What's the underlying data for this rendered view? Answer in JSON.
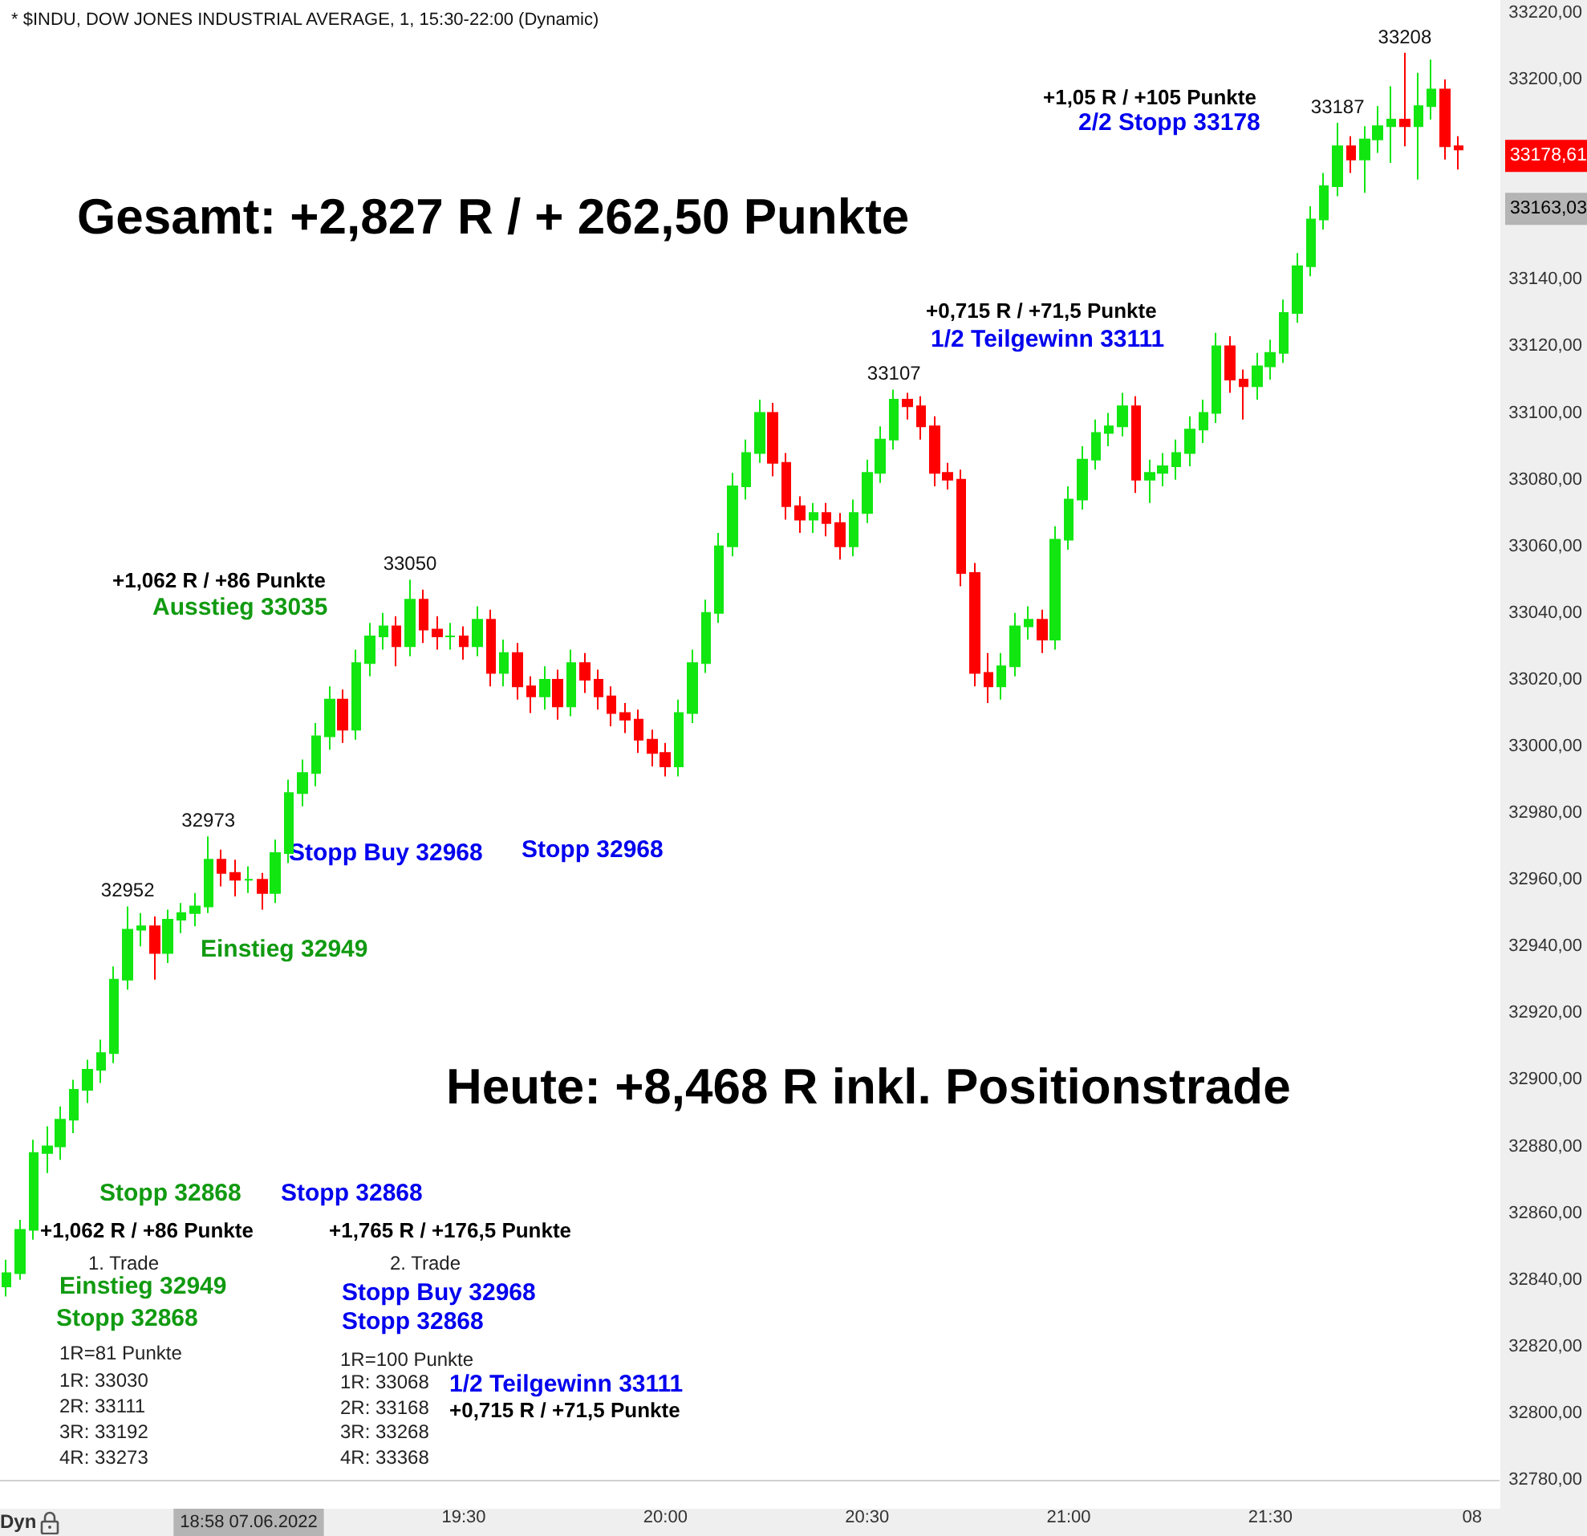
{
  "chart_data": {
    "type": "candlestick",
    "title": "* $INDU, DOW JONES INDUSTRIAL AVERAGE, 1, 15:30-22:00 (Dynamic)",
    "x": [
      "2022-06-07T18:22",
      "2022-06-07T18:24",
      "2022-06-07T18:26",
      "2022-06-07T18:28",
      "2022-06-07T18:30",
      "2022-06-07T18:32",
      "2022-06-07T18:34",
      "2022-06-07T18:36",
      "2022-06-07T18:38",
      "2022-06-07T18:40",
      "2022-06-07T18:42",
      "2022-06-07T18:44",
      "2022-06-07T18:46",
      "2022-06-07T18:48",
      "2022-06-07T18:50",
      "2022-06-07T18:52",
      "2022-06-07T18:54",
      "2022-06-07T18:56",
      "2022-06-07T18:58",
      "2022-06-07T19:00",
      "2022-06-07T19:02",
      "2022-06-07T19:04",
      "2022-06-07T19:06",
      "2022-06-07T19:08",
      "2022-06-07T19:10",
      "2022-06-07T19:12",
      "2022-06-07T19:14",
      "2022-06-07T19:16",
      "2022-06-07T19:18",
      "2022-06-07T19:20",
      "2022-06-07T19:22",
      "2022-06-07T19:24",
      "2022-06-07T19:26",
      "2022-06-07T19:28",
      "2022-06-07T19:30",
      "2022-06-07T19:32",
      "2022-06-07T19:34",
      "2022-06-07T19:36",
      "2022-06-07T19:38",
      "2022-06-07T19:40",
      "2022-06-07T19:42",
      "2022-06-07T19:44",
      "2022-06-07T19:46",
      "2022-06-07T19:48",
      "2022-06-07T19:50",
      "2022-06-07T19:52",
      "2022-06-07T19:54",
      "2022-06-07T19:56",
      "2022-06-07T19:58",
      "2022-06-07T20:00",
      "2022-06-07T20:02",
      "2022-06-07T20:04",
      "2022-06-07T20:06",
      "2022-06-07T20:08",
      "2022-06-07T20:10",
      "2022-06-07T20:12",
      "2022-06-07T20:14",
      "2022-06-07T20:16",
      "2022-06-07T20:18",
      "2022-06-07T20:20",
      "2022-06-07T20:22",
      "2022-06-07T20:24",
      "2022-06-07T20:26",
      "2022-06-07T20:28",
      "2022-06-07T20:30",
      "2022-06-07T20:32",
      "2022-06-07T20:34",
      "2022-06-07T20:36",
      "2022-06-07T20:38",
      "2022-06-07T20:40",
      "2022-06-07T20:42",
      "2022-06-07T20:44",
      "2022-06-07T20:46",
      "2022-06-07T20:48",
      "2022-06-07T20:50",
      "2022-06-07T20:52",
      "2022-06-07T20:54",
      "2022-06-07T20:56",
      "2022-06-07T20:58",
      "2022-06-07T21:00",
      "2022-06-07T21:02",
      "2022-06-07T21:04",
      "2022-06-07T21:06",
      "2022-06-07T21:08",
      "2022-06-07T21:10",
      "2022-06-07T21:12",
      "2022-06-07T21:14",
      "2022-06-07T21:16",
      "2022-06-07T21:18",
      "2022-06-07T21:20",
      "2022-06-07T21:22",
      "2022-06-07T21:24",
      "2022-06-07T21:26",
      "2022-06-07T21:28",
      "2022-06-07T21:30",
      "2022-06-07T21:32",
      "2022-06-07T21:34",
      "2022-06-07T21:36",
      "2022-06-07T21:38",
      "2022-06-07T21:40",
      "2022-06-07T21:42",
      "2022-06-07T21:44",
      "2022-06-07T21:46",
      "2022-06-07T21:48",
      "2022-06-07T21:50",
      "2022-06-07T21:52",
      "2022-06-07T21:54",
      "2022-06-07T21:56",
      "2022-06-07T21:58"
    ],
    "ohlc": [
      [
        32838,
        32846,
        32835,
        32842
      ],
      [
        32842,
        32858,
        32840,
        32855
      ],
      [
        32855,
        32882,
        32852,
        32878
      ],
      [
        32878,
        32886,
        32872,
        32880
      ],
      [
        32880,
        32892,
        32876,
        32888
      ],
      [
        32888,
        32900,
        32884,
        32897
      ],
      [
        32897,
        32906,
        32893,
        32903
      ],
      [
        32903,
        32912,
        32899,
        32908
      ],
      [
        32908,
        32934,
        32905,
        32930
      ],
      [
        32930,
        32952,
        32927,
        32945
      ],
      [
        32945,
        32950,
        32940,
        32946
      ],
      [
        32946,
        32949,
        32930,
        32938
      ],
      [
        32938,
        32951,
        32935,
        32948
      ],
      [
        32948,
        32953,
        32944,
        32950
      ],
      [
        32950,
        32956,
        32946,
        32952
      ],
      [
        32952,
        32973,
        32950,
        32966
      ],
      [
        32966,
        32969,
        32958,
        32962
      ],
      [
        32962,
        32966,
        32955,
        32960
      ],
      [
        32960,
        32964,
        32956,
        32960
      ],
      [
        32960,
        32962,
        32951,
        32956
      ],
      [
        32956,
        32972,
        32953,
        32968
      ],
      [
        32968,
        32990,
        32965,
        32986
      ],
      [
        32986,
        32996,
        32982,
        32992
      ],
      [
        32992,
        33007,
        32988,
        33003
      ],
      [
        33003,
        33018,
        32999,
        33014
      ],
      [
        33014,
        33017,
        33001,
        33005
      ],
      [
        33005,
        33029,
        33002,
        33025
      ],
      [
        33025,
        33037,
        33021,
        33033
      ],
      [
        33033,
        33040,
        33029,
        33036
      ],
      [
        33036,
        33039,
        33024,
        33030
      ],
      [
        33030,
        33050,
        33027,
        33044
      ],
      [
        33044,
        33047,
        33031,
        33035
      ],
      [
        33035,
        33039,
        33029,
        33033
      ],
      [
        33033,
        33037,
        33029,
        33033
      ],
      [
        33033,
        33036,
        33026,
        33030
      ],
      [
        33030,
        33042,
        33027,
        33038
      ],
      [
        33038,
        33041,
        33018,
        33022
      ],
      [
        33022,
        33032,
        33018,
        33028
      ],
      [
        33028,
        33031,
        33014,
        33018
      ],
      [
        33018,
        33021,
        33010,
        33015
      ],
      [
        33015,
        33024,
        33011,
        33020
      ],
      [
        33020,
        33023,
        33008,
        33012
      ],
      [
        33012,
        33029,
        33009,
        33025
      ],
      [
        33025,
        33028,
        33016,
        33020
      ],
      [
        33020,
        33023,
        33011,
        33015
      ],
      [
        33015,
        33018,
        33006,
        33010
      ],
      [
        33010,
        33013,
        33004,
        33008
      ],
      [
        33008,
        33011,
        32998,
        33002
      ],
      [
        33002,
        33005,
        32994,
        32998
      ],
      [
        32998,
        33001,
        32991,
        32994
      ],
      [
        32994,
        33014,
        32991,
        33010
      ],
      [
        33010,
        33029,
        33007,
        33025
      ],
      [
        33025,
        33044,
        33022,
        33040
      ],
      [
        33040,
        33064,
        33037,
        33060
      ],
      [
        33060,
        33082,
        33057,
        33078
      ],
      [
        33078,
        33092,
        33074,
        33088
      ],
      [
        33088,
        33104,
        33085,
        33100
      ],
      [
        33100,
        33103,
        33081,
        33085
      ],
      [
        33085,
        33088,
        33068,
        33072
      ],
      [
        33072,
        33075,
        33064,
        33068
      ],
      [
        33068,
        33073,
        33064,
        33070
      ],
      [
        33070,
        33073,
        33063,
        33067
      ],
      [
        33067,
        33070,
        33056,
        33060
      ],
      [
        33060,
        33074,
        33057,
        33070
      ],
      [
        33070,
        33086,
        33067,
        33082
      ],
      [
        33082,
        33096,
        33079,
        33092
      ],
      [
        33092,
        33107,
        33089,
        33104
      ],
      [
        33104,
        33106,
        33098,
        33102
      ],
      [
        33102,
        33105,
        33092,
        33096
      ],
      [
        33096,
        33099,
        33078,
        33082
      ],
      [
        33082,
        33085,
        33077,
        33080
      ],
      [
        33080,
        33083,
        33048,
        33052
      ],
      [
        33052,
        33055,
        33018,
        33022
      ],
      [
        33022,
        33028,
        33013,
        33018
      ],
      [
        33018,
        33028,
        33014,
        33024
      ],
      [
        33024,
        33040,
        33021,
        33036
      ],
      [
        33036,
        33042,
        33032,
        33038
      ],
      [
        33038,
        33041,
        33028,
        33032
      ],
      [
        33032,
        33066,
        33029,
        33062
      ],
      [
        33062,
        33078,
        33059,
        33074
      ],
      [
        33074,
        33090,
        33071,
        33086
      ],
      [
        33086,
        33098,
        33083,
        33094
      ],
      [
        33094,
        33100,
        33090,
        33096
      ],
      [
        33096,
        33106,
        33093,
        33102
      ],
      [
        33102,
        33105,
        33076,
        33080
      ],
      [
        33080,
        33086,
        33073,
        33082
      ],
      [
        33082,
        33088,
        33078,
        33084
      ],
      [
        33084,
        33092,
        33080,
        33088
      ],
      [
        33088,
        33099,
        33084,
        33095
      ],
      [
        33095,
        33104,
        33091,
        33100
      ],
      [
        33100,
        33124,
        33097,
        33120
      ],
      [
        33120,
        33123,
        33106,
        33110
      ],
      [
        33110,
        33113,
        33098,
        33108
      ],
      [
        33108,
        33118,
        33104,
        33114
      ],
      [
        33114,
        33122,
        33110,
        33118
      ],
      [
        33118,
        33134,
        33115,
        33130
      ],
      [
        33130,
        33148,
        33127,
        33144
      ],
      [
        33144,
        33162,
        33141,
        33158
      ],
      [
        33158,
        33172,
        33155,
        33168
      ],
      [
        33168,
        33187,
        33165,
        33180
      ],
      [
        33180,
        33183,
        33172,
        33176
      ],
      [
        33176,
        33186,
        33166,
        33182
      ],
      [
        33182,
        33192,
        33178,
        33186
      ],
      [
        33186,
        33198,
        33175,
        33188
      ],
      [
        33188,
        33208,
        33180,
        33186
      ],
      [
        33186,
        33202,
        33170,
        33192
      ],
      [
        33192,
        33206,
        33188,
        33197
      ],
      [
        33197,
        33200,
        33176,
        33180
      ],
      [
        33180,
        33183,
        33173,
        33179
      ]
    ],
    "xlim": [
      "2022-06-07T18:21",
      "2022-06-07T22:04"
    ],
    "xticks": [
      {
        "value": "2022-06-07T18:58",
        "label": "18:58 07.06.2022"
      },
      {
        "value": "2022-06-07T19:30",
        "label": "19:30"
      },
      {
        "value": "2022-06-07T20:00",
        "label": "20:00"
      },
      {
        "value": "2022-06-07T20:30",
        "label": "20:30"
      },
      {
        "value": "2022-06-07T21:00",
        "label": "21:00"
      },
      {
        "value": "2022-06-07T21:30",
        "label": "21:30"
      },
      {
        "value": "2022-06-07T22:00",
        "label": "08"
      }
    ],
    "ylim": [
      32780,
      33220
    ],
    "yticks": [
      {
        "value": 32780,
        "label": "32780,00"
      },
      {
        "value": 32800,
        "label": "32800,00"
      },
      {
        "value": 32820,
        "label": "32820,00"
      },
      {
        "value": 32840,
        "label": "32840,00"
      },
      {
        "value": 32860,
        "label": "32860,00"
      },
      {
        "value": 32880,
        "label": "32880,00"
      },
      {
        "value": 32900,
        "label": "32900,00"
      },
      {
        "value": 32920,
        "label": "32920,00"
      },
      {
        "value": 32940,
        "label": "32940,00"
      },
      {
        "value": 32960,
        "label": "32960,00"
      },
      {
        "value": 32980,
        "label": "32980,00"
      },
      {
        "value": 33000,
        "label": "33000,00"
      },
      {
        "value": 33020,
        "label": "33020,00"
      },
      {
        "value": 33040,
        "label": "33040,00"
      },
      {
        "value": 33060,
        "label": "33060,00"
      },
      {
        "value": 33080,
        "label": "33080,00"
      },
      {
        "value": 33100,
        "label": "33100,00"
      },
      {
        "value": 33120,
        "label": "33120,00"
      },
      {
        "value": 33140,
        "label": "33140,00"
      },
      {
        "value": 33200,
        "label": "33200,00"
      },
      {
        "value": 33220,
        "label": "33220,00"
      }
    ],
    "grid": false,
    "annotations": [
      "Gesamt: +2,827 R / + 262,50 Punkte",
      "Heute: +8,468 R inkl. Positionstrade",
      "+1,062 R / +86 Punkte",
      "Ausstieg 33035",
      "Stopp 32868",
      "Stopp 32868",
      "+1,062 R / +86 Punkte",
      "1. Trade",
      "Einstieg 32949",
      "Stopp 32868",
      "1R=81 Punkte",
      "1R: 33030",
      "2R: 33111",
      "3R: 33192",
      "4R: 33273",
      "+1,765 R / +176,5 Punkte",
      "2. Trade",
      "Stopp Buy 32968",
      "Stopp 32868",
      "1R=100 Punkte",
      "1R: 33068",
      "2R: 33168",
      "3R: 33268",
      "4R: 33368",
      "1/2 Teilgewinn 33111",
      "+0,715 R / +71,5 Punkte",
      "Einstieg 32949",
      "Stopp Buy 32968",
      "Stopp 32968",
      "+0,715 R / +71,5 Punkte",
      "1/2 Teilgewinn 33111",
      "+1,05 R / +105 Punkte",
      "2/2 Stopp 33178",
      "Dyn",
      {
        "text": "32952",
        "x": "2022-06-07T18:40",
        "y": 32952
      },
      {
        "text": "32973",
        "x": "2022-06-07T18:52",
        "y": 32973
      },
      {
        "text": "33050",
        "x": "2022-06-07T19:22",
        "y": 33050
      },
      {
        "text": "33107",
        "x": "2022-06-07T20:34",
        "y": 33107
      },
      {
        "text": "33187",
        "x": "2022-06-07T21:40",
        "y": 33187
      },
      {
        "text": "33208",
        "x": "2022-06-07T21:50",
        "y": 33208
      },
      "33178,61",
      "33163,03"
    ]
  }
}
